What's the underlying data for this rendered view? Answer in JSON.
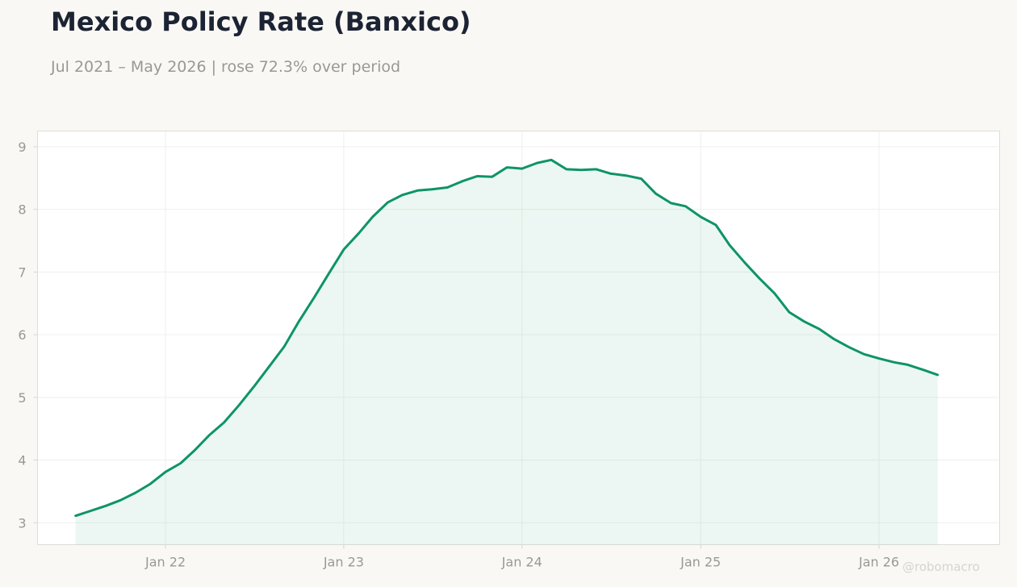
{
  "title": "Mexico Policy Rate (Banxico)",
  "subtitle": "Jul 2021 – May 2026 | rose 72.3% over period",
  "watermark": "@robomacro",
  "colors": {
    "line": "#0e9466",
    "fill": "#0e9466",
    "background": "#f9f8f5",
    "plot_background": "#ffffff",
    "grid": "#efefec",
    "tick_text": "#999994",
    "title": "#1c2333"
  },
  "chart_data": {
    "type": "area",
    "title": "Mexico Policy Rate (Banxico)",
    "subtitle": "Jul 2021 – May 2026 | rose 72.3% over period",
    "xlabel": "",
    "ylabel": "",
    "x_ticks": [
      {
        "date": "2022-01",
        "label": "Jan 22"
      },
      {
        "date": "2023-01",
        "label": "Jan 23"
      },
      {
        "date": "2024-01",
        "label": "Jan 24"
      },
      {
        "date": "2025-01",
        "label": "Jan 25"
      },
      {
        "date": "2026-01",
        "label": "Jan 26"
      }
    ],
    "y_ticks": [
      3,
      4,
      5,
      6,
      7,
      8,
      9
    ],
    "xlim": [
      "2021-04-14",
      "2026-09-05"
    ],
    "ylim": [
      2.65,
      9.25
    ],
    "grid": true,
    "legend": "none",
    "x": [
      "2021-07",
      "2021-08",
      "2021-09",
      "2021-10",
      "2021-11",
      "2021-12",
      "2022-01",
      "2022-02",
      "2022-03",
      "2022-04",
      "2022-05",
      "2022-06",
      "2022-07",
      "2022-08",
      "2022-09",
      "2022-10",
      "2022-11",
      "2022-12",
      "2023-01",
      "2023-02",
      "2023-03",
      "2023-04",
      "2023-05",
      "2023-06",
      "2023-07",
      "2023-08",
      "2023-09",
      "2023-10",
      "2023-11",
      "2023-12",
      "2024-01",
      "2024-02",
      "2024-03",
      "2024-04",
      "2024-05",
      "2024-06",
      "2024-07",
      "2024-08",
      "2024-09",
      "2024-10",
      "2024-11",
      "2024-12",
      "2025-01",
      "2025-02",
      "2025-03",
      "2025-04",
      "2025-05",
      "2025-06",
      "2025-07",
      "2025-08",
      "2025-09",
      "2025-10",
      "2025-11",
      "2025-12",
      "2026-01",
      "2026-02",
      "2026-03",
      "2026-04",
      "2026-05"
    ],
    "values": [
      3.11,
      3.19,
      3.27,
      3.36,
      3.48,
      3.62,
      3.81,
      3.95,
      4.15,
      4.4,
      4.6,
      4.88,
      5.17,
      5.49,
      5.81,
      6.21,
      6.59,
      6.97,
      7.36,
      7.62,
      7.88,
      8.11,
      8.23,
      8.3,
      8.32,
      8.35,
      8.45,
      8.53,
      8.52,
      8.67,
      8.65,
      8.74,
      8.79,
      8.64,
      8.63,
      8.64,
      8.57,
      8.54,
      8.49,
      8.25,
      8.1,
      8.05,
      7.88,
      7.75,
      7.43,
      7.15,
      6.9,
      6.66,
      6.36,
      6.21,
      6.09,
      5.93,
      5.8,
      5.69,
      5.62,
      5.56,
      5.52,
      5.44,
      5.36
    ]
  }
}
